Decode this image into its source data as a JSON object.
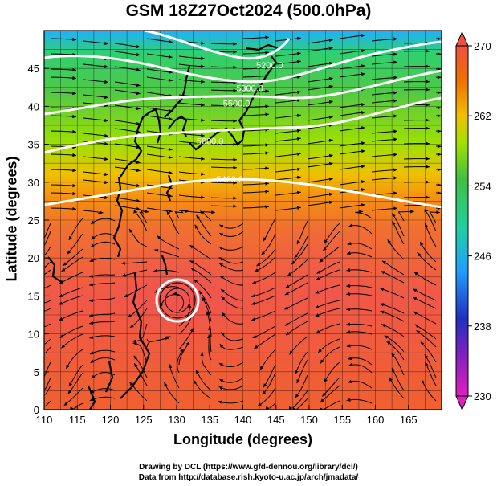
{
  "title": "GSM 18Z27Oct2024 (500.0hPa)",
  "x_axis_title": "Longitude (degrees)",
  "y_axis_title": "Latitude  (degrees)",
  "credits": {
    "line1": "Drawing by DCL (https://www.gfd-dennou.org/library/dcl/)",
    "line2": "Data from http://database.rish.kyoto-u.ac.jp/arch/jmadata/"
  },
  "chart_data": {
    "type": "heatmap",
    "xlim": [
      110,
      170
    ],
    "ylim": [
      0,
      50
    ],
    "x_ticks": [
      110,
      115,
      120,
      125,
      130,
      135,
      140,
      145,
      150,
      155,
      160,
      165
    ],
    "y_ticks": [
      0,
      5,
      10,
      15,
      20,
      25,
      30,
      35,
      40,
      45
    ],
    "colorbar": {
      "ticks": [
        230,
        238,
        246,
        254,
        262,
        270
      ],
      "range": [
        230,
        270
      ],
      "colors": [
        "#e020c0",
        "#2020c0",
        "#20a0ff",
        "#20d0a0",
        "#40c040",
        "#a0e000",
        "#f0c000",
        "#f07000",
        "#f05040"
      ]
    },
    "contours": [
      {
        "label": "5400.0",
        "lon": 136,
        "lat": 30
      },
      {
        "label": "5600.0",
        "lon": 133,
        "lat": 35
      },
      {
        "label": "5500.0",
        "lon": 137,
        "lat": 40
      },
      {
        "label": "5300.0",
        "lon": 139,
        "lat": 42
      },
      {
        "label": "5200.0",
        "lon": 142,
        "lat": 45
      }
    ],
    "typhoon_center": {
      "lon": 130,
      "lat": 16
    }
  }
}
